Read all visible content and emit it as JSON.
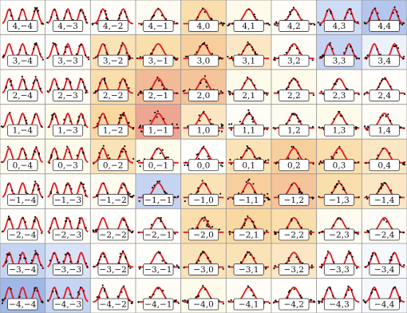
{
  "chart_data": {
    "type": "heatmap",
    "title": "",
    "xlabel": "",
    "ylabel": "",
    "grid": true,
    "row_keys": [
      4,
      3,
      2,
      1,
      0,
      -1,
      -2,
      -3,
      -4
    ],
    "col_keys": [
      -4,
      -3,
      -2,
      -1,
      0,
      1,
      2,
      3,
      4
    ],
    "cell_labels": [
      [
        "4,−4",
        "4,−3",
        "4,−2",
        "4,−1",
        "4,0",
        "4,1",
        "4,2",
        "4,3",
        "4,4"
      ],
      [
        "3,−4",
        "3,−3",
        "3,−2",
        "3,−1",
        "3,0",
        "3,1",
        "3,2",
        "3,3",
        "3,4"
      ],
      [
        "2,−4",
        "2,−3",
        "2,−2",
        "2,−1",
        "2,0",
        "2,1",
        "2,2",
        "2,3",
        "2,4"
      ],
      [
        "1,−4",
        "1,−3",
        "1,−2",
        "1,−1",
        "1,0",
        "1,1",
        "1,2",
        "1,3",
        "1,4"
      ],
      [
        "0,−4",
        "0,−3",
        "0,−2",
        "0,−1",
        "0,0",
        "0,1",
        "0,2",
        "0,3",
        "0,4"
      ],
      [
        "−1,−4",
        "−1,−3",
        "−1,−2",
        "−1,−1",
        "−1,0",
        "−1,1",
        "−1,2",
        "−1,3",
        "−1,4"
      ],
      [
        "−2,−4",
        "−2,−3",
        "−2,−2",
        "−2,−1",
        "−2,0",
        "−2,1",
        "−2,2",
        "−2,3",
        "−2,4"
      ],
      [
        "−3,−4",
        "−3,−3",
        "−3,−2",
        "−3,−1",
        "−3,0",
        "−3,1",
        "−3,2",
        "−3,3",
        "−3,4"
      ],
      [
        "−4,−4",
        "−4,−3",
        "−4,−2",
        "−4,−1",
        "−4,0",
        "−4,1",
        "−4,2",
        "−4,3",
        "−4,4"
      ]
    ],
    "intensity": [
      [
        0.05,
        0.02,
        0.05,
        0.15,
        0.35,
        0.2,
        0.08,
        -0.25,
        -0.4
      ],
      [
        0.05,
        0.05,
        0.3,
        0.35,
        0.55,
        0.25,
        0.1,
        -0.3,
        -0.1
      ],
      [
        0.05,
        0.1,
        0.35,
        0.65,
        0.6,
        0.2,
        0.2,
        0.1,
        0.05
      ],
      [
        0.1,
        0.2,
        0.5,
        0.75,
        0.25,
        0.1,
        0.15,
        0.2,
        0.1
      ],
      [
        0.15,
        0.2,
        0.3,
        0.2,
        0.05,
        0.3,
        0.55,
        0.35,
        0.25
      ],
      [
        0.05,
        0.1,
        0.15,
        -0.3,
        0.3,
        0.55,
        0.6,
        0.35,
        0.25
      ],
      [
        0.05,
        0.05,
        0.05,
        0.05,
        0.35,
        0.45,
        0.35,
        0.15,
        0.1
      ],
      [
        -0.3,
        -0.2,
        0.05,
        0.05,
        0.3,
        0.3,
        0.25,
        0.05,
        -0.05
      ],
      [
        -0.5,
        -0.3,
        0.05,
        0.1,
        0.2,
        0.1,
        0.05,
        0.0,
        -0.05
      ]
    ],
    "colors": {
      "curve": "#e0191f",
      "points": "#111111",
      "cell_border": "#9a9a9a",
      "warm_low": "#fdf6d6",
      "warm_mid": "#f9d9a0",
      "warm_high": "#ec9b8f",
      "cool": "#9fb8ea",
      "neutral": "#ffffff"
    }
  }
}
